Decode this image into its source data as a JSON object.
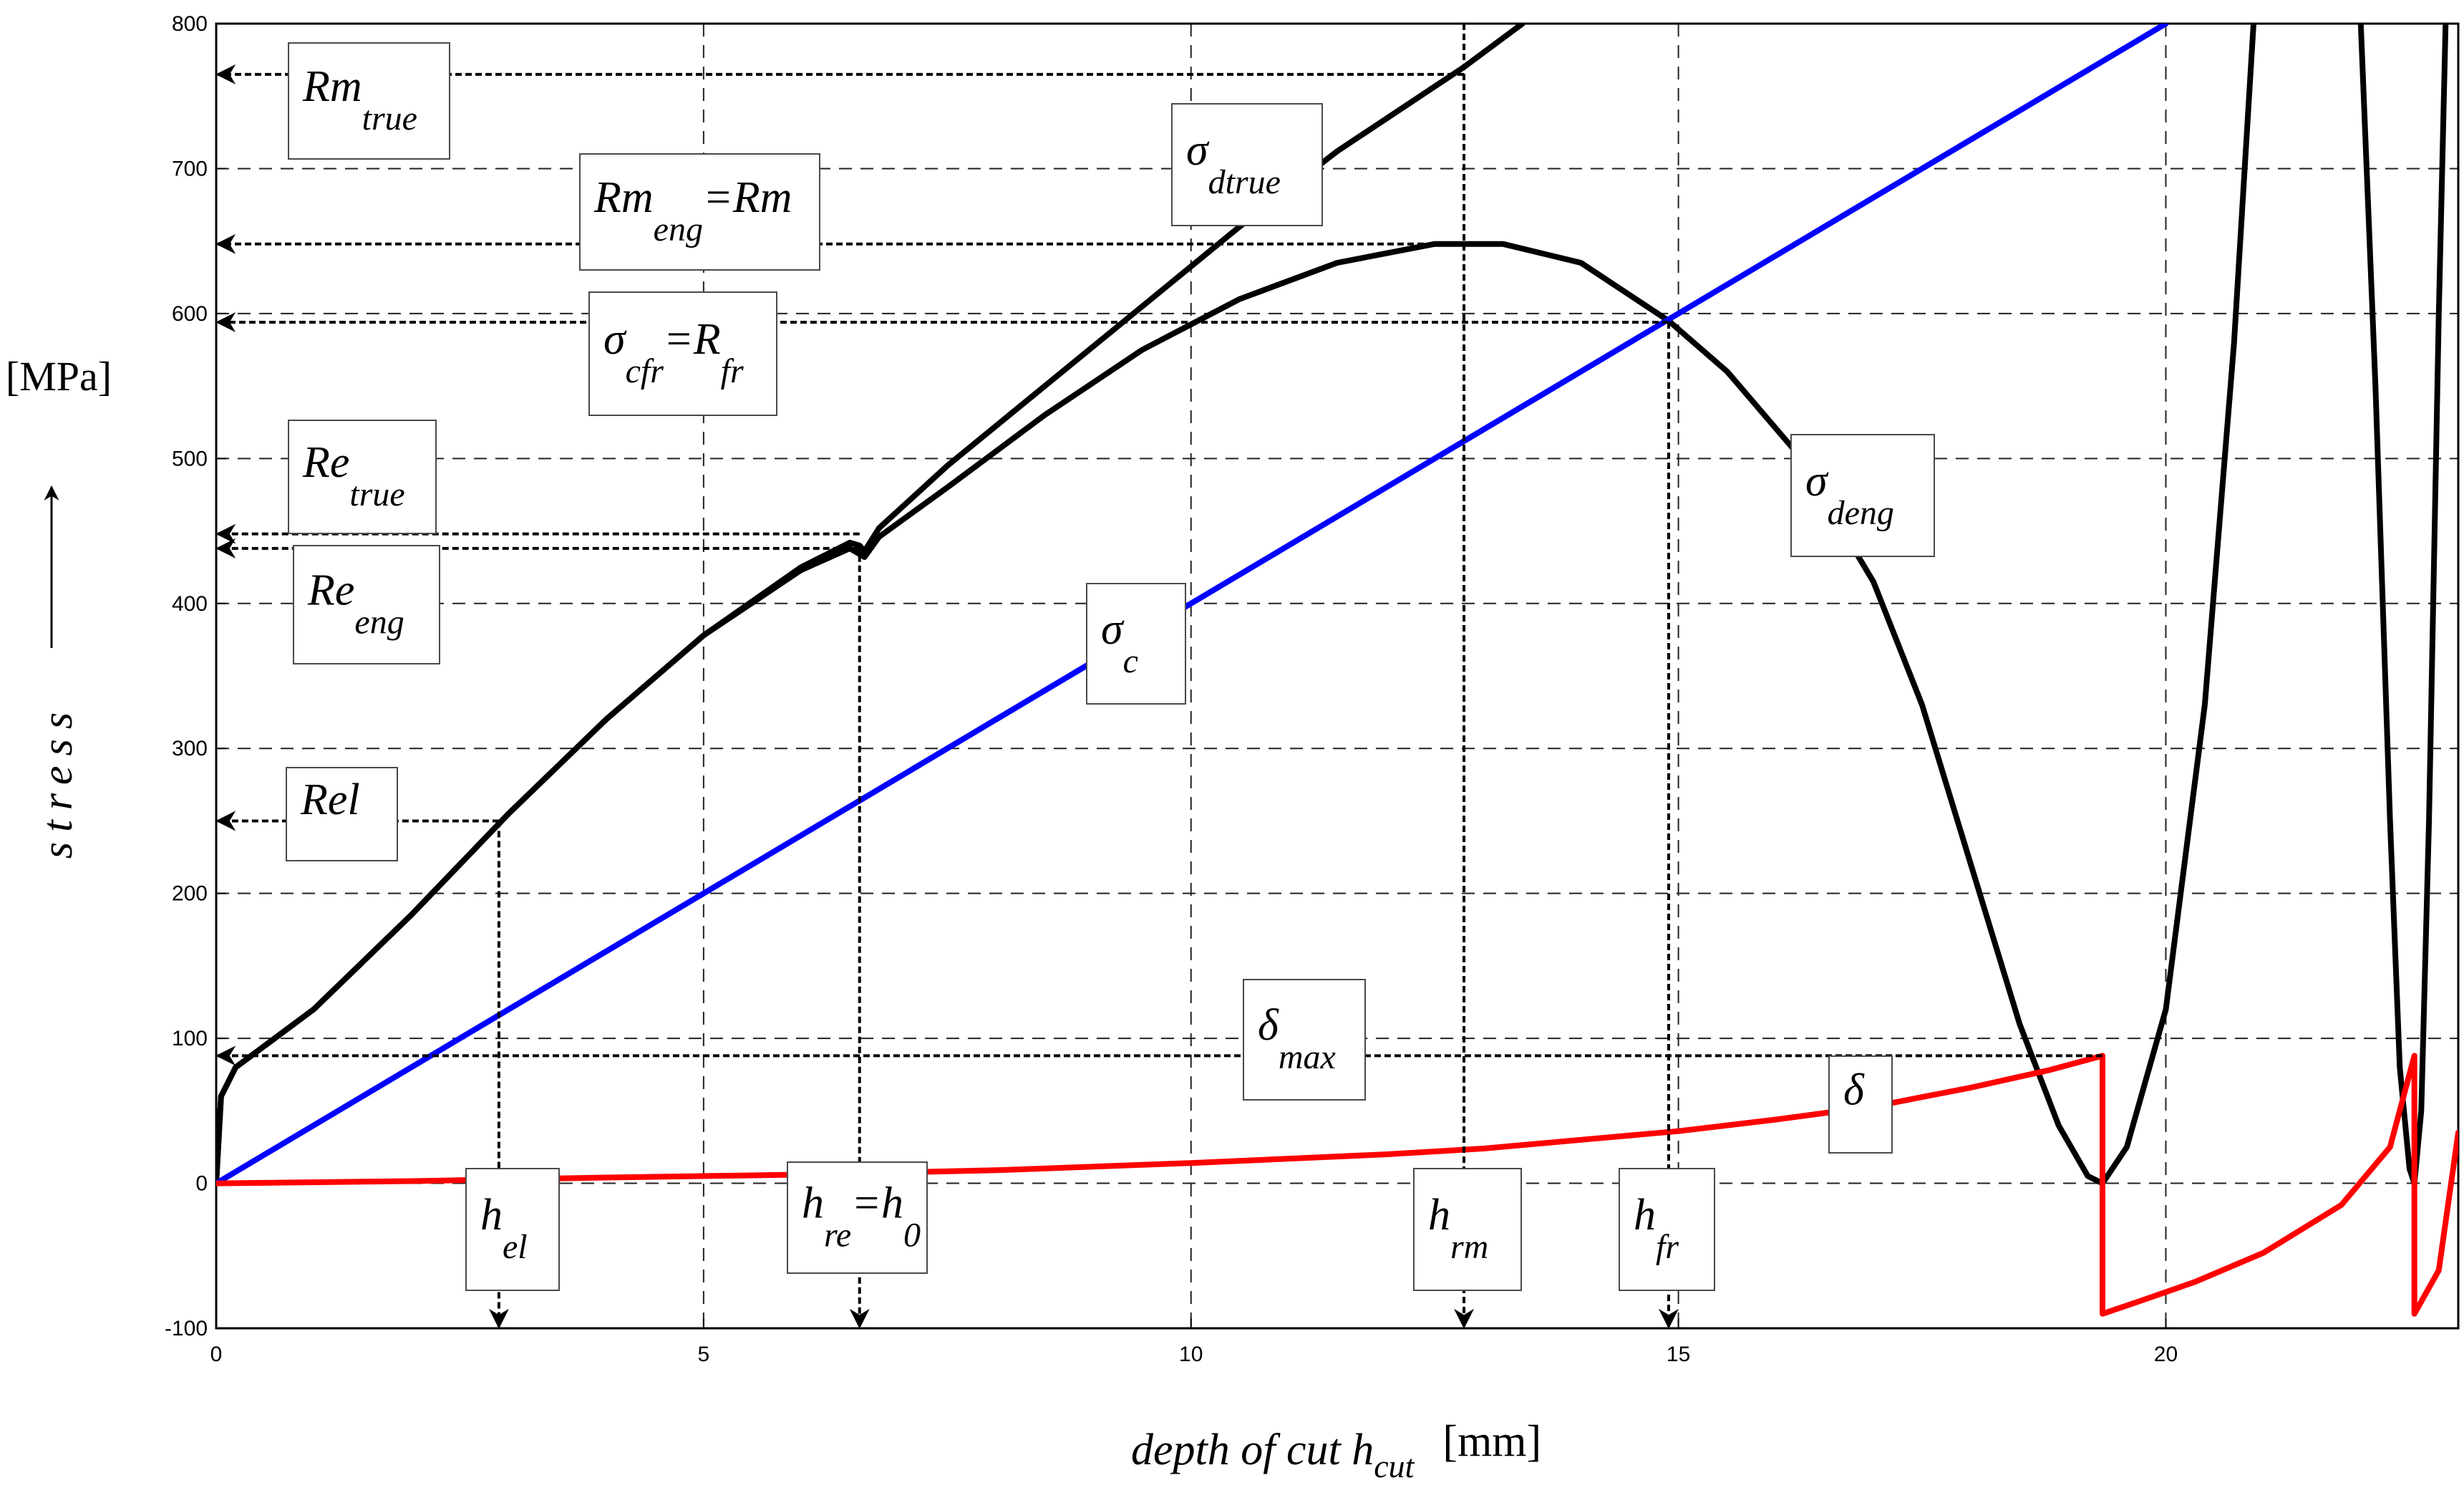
{
  "chart_data": {
    "type": "line",
    "ylabel": "stress",
    "yunit": "[MPa]",
    "xlabel": {
      "text": "depth of cut h",
      "sub": "cut",
      "unit": "[mm]"
    },
    "xlim": [
      0,
      23
    ],
    "ylim": [
      -100,
      800
    ],
    "x_ticks": [
      "0",
      "5",
      "10",
      "15",
      "20"
    ],
    "x_tick_values": [
      0,
      5,
      10,
      15,
      20
    ],
    "y_ticks": [
      "-100",
      "0",
      "100",
      "200",
      "300",
      "400",
      "500",
      "600",
      "700",
      "800"
    ],
    "y_tick_values": [
      -100,
      0,
      100,
      200,
      300,
      400,
      500,
      600,
      700,
      800
    ],
    "grid": true,
    "colors": {
      "sigma_c": "#0000ff",
      "delta": "#ff0000",
      "stress": "#000000"
    },
    "series": [
      {
        "key": "sigma_dtrue",
        "color": "#000000",
        "points": [
          [
            0,
            0
          ],
          [
            0.05,
            60
          ],
          [
            0.2,
            80
          ],
          [
            0.5,
            95
          ],
          [
            1,
            120
          ],
          [
            2,
            185
          ],
          [
            3,
            255
          ],
          [
            4,
            320
          ],
          [
            5,
            378
          ],
          [
            6,
            425
          ],
          [
            6.5,
            442
          ],
          [
            6.6,
            440
          ],
          [
            6.65,
            436
          ],
          [
            6.8,
            452
          ],
          [
            7.5,
            495
          ],
          [
            8.5,
            550
          ],
          [
            9.5,
            605
          ],
          [
            10.5,
            660
          ],
          [
            11.5,
            712
          ],
          [
            12.8,
            770
          ],
          [
            13.4,
            800
          ]
        ]
      },
      {
        "key": "sigma_deng",
        "color": "#000000",
        "points": [
          [
            0,
            0
          ],
          [
            0.05,
            60
          ],
          [
            0.2,
            80
          ],
          [
            0.5,
            95
          ],
          [
            1,
            120
          ],
          [
            2,
            185
          ],
          [
            3,
            255
          ],
          [
            4,
            320
          ],
          [
            5,
            378
          ],
          [
            6,
            423
          ],
          [
            6.5,
            438
          ],
          [
            6.65,
            432
          ],
          [
            6.8,
            446
          ],
          [
            7.5,
            480
          ],
          [
            8.5,
            530
          ],
          [
            9.5,
            575
          ],
          [
            10.5,
            610
          ],
          [
            11.5,
            635
          ],
          [
            12.5,
            648
          ],
          [
            13.2,
            648
          ],
          [
            14,
            635
          ],
          [
            14.9,
            595
          ],
          [
            15.5,
            560
          ],
          [
            16.2,
            505
          ],
          [
            17,
            415
          ],
          [
            17.5,
            330
          ],
          [
            18,
            220
          ],
          [
            18.5,
            110
          ],
          [
            18.9,
            40
          ],
          [
            19.2,
            5
          ],
          [
            19.35,
            0
          ],
          [
            19.6,
            25
          ],
          [
            20,
            120
          ],
          [
            20.4,
            330
          ],
          [
            20.7,
            580
          ],
          [
            20.9,
            800
          ]
        ]
      },
      {
        "key": "sigma_deng_second",
        "color": "#000000",
        "points": [
          [
            22.0,
            800
          ],
          [
            22.15,
            550
          ],
          [
            22.3,
            250
          ],
          [
            22.4,
            80
          ],
          [
            22.5,
            10
          ],
          [
            22.55,
            0
          ],
          [
            22.62,
            50
          ],
          [
            22.7,
            250
          ],
          [
            22.8,
            600
          ],
          [
            22.87,
            800
          ]
        ]
      },
      {
        "key": "sigma_c",
        "color": "#0000ff",
        "points": [
          [
            0,
            0
          ],
          [
            20,
            800
          ]
        ]
      },
      {
        "key": "delta",
        "color": "#ff0000",
        "points": [
          [
            0,
            0
          ],
          [
            2,
            1.5
          ],
          [
            4,
            4
          ],
          [
            6,
            6
          ],
          [
            8,
            9
          ],
          [
            10,
            14
          ],
          [
            12,
            20
          ],
          [
            13,
            24
          ],
          [
            14,
            30
          ],
          [
            15,
            36
          ],
          [
            16,
            44
          ],
          [
            17,
            53
          ],
          [
            18,
            66
          ],
          [
            18.8,
            78
          ],
          [
            19.35,
            88
          ],
          [
            19.35,
            -90
          ],
          [
            19.7,
            -82
          ],
          [
            20.3,
            -68
          ],
          [
            21,
            -48
          ],
          [
            21.8,
            -15
          ],
          [
            22.3,
            25
          ],
          [
            22.55,
            88
          ],
          [
            22.55,
            -90
          ],
          [
            22.8,
            -60
          ],
          [
            23.0,
            35
          ]
        ]
      }
    ],
    "labels": [
      {
        "key": "rm_true",
        "main": "Rm",
        "sub": "true"
      },
      {
        "key": "rm_eng",
        "main": "Rm",
        "sub": "eng",
        "tail": "=Rm"
      },
      {
        "key": "sigma_cfr",
        "main": "σ",
        "sub": "cfr",
        "tail": "=R",
        "tailsub": "fr"
      },
      {
        "key": "re_true",
        "main": "Re",
        "sub": "true"
      },
      {
        "key": "re_eng",
        "main": "Re",
        "sub": "eng"
      },
      {
        "key": "rel",
        "main": "Rel"
      },
      {
        "key": "sigma_dtrue_lbl",
        "main": "σ",
        "sub": "dtrue"
      },
      {
        "key": "sigma_deng_lbl",
        "main": "σ",
        "sub": "deng"
      },
      {
        "key": "sigma_c_lbl",
        "main": "σ",
        "sub": "c"
      },
      {
        "key": "delta_max",
        "main": "δ",
        "sub": "max"
      },
      {
        "key": "delta_lbl",
        "main": "δ"
      },
      {
        "key": "h_el",
        "main": "h",
        "sub": "el"
      },
      {
        "key": "h_re",
        "main": "h",
        "sub": "re",
        "tail": "=h",
        "tailsub": "0"
      },
      {
        "key": "h_rm",
        "main": "h",
        "sub": "rm"
      },
      {
        "key": "h_fr",
        "main": "h",
        "sub": "fr"
      }
    ],
    "annotations": {
      "horizontal_arrows": [
        {
          "to_label": "rm_true",
          "y": 765,
          "x_end": 12.8
        },
        {
          "to_label": "rm_eng",
          "y": 648,
          "x_end": 12.8
        },
        {
          "to_label": "sigma_cfr",
          "y": 594,
          "x_end": 14.9
        },
        {
          "to_label": "re_true",
          "y": 448,
          "x_end": 6.6
        },
        {
          "to_label": "re_eng",
          "y": 438,
          "x_end": 6.6
        },
        {
          "to_label": "rel",
          "y": 250,
          "x_end": 2.9
        },
        {
          "to_label": "delta_max",
          "y": 88,
          "x_end": 19.35
        }
      ],
      "vertical_arrows": [
        {
          "to_label": "h_el",
          "x": 2.9,
          "y_top": 250
        },
        {
          "to_label": "h_re",
          "x": 6.6,
          "y_top": 440
        },
        {
          "to_label": "h_rm",
          "x": 12.8,
          "y_top": 800
        },
        {
          "to_label": "h_fr",
          "x": 14.9,
          "y_top": 594
        }
      ]
    }
  }
}
